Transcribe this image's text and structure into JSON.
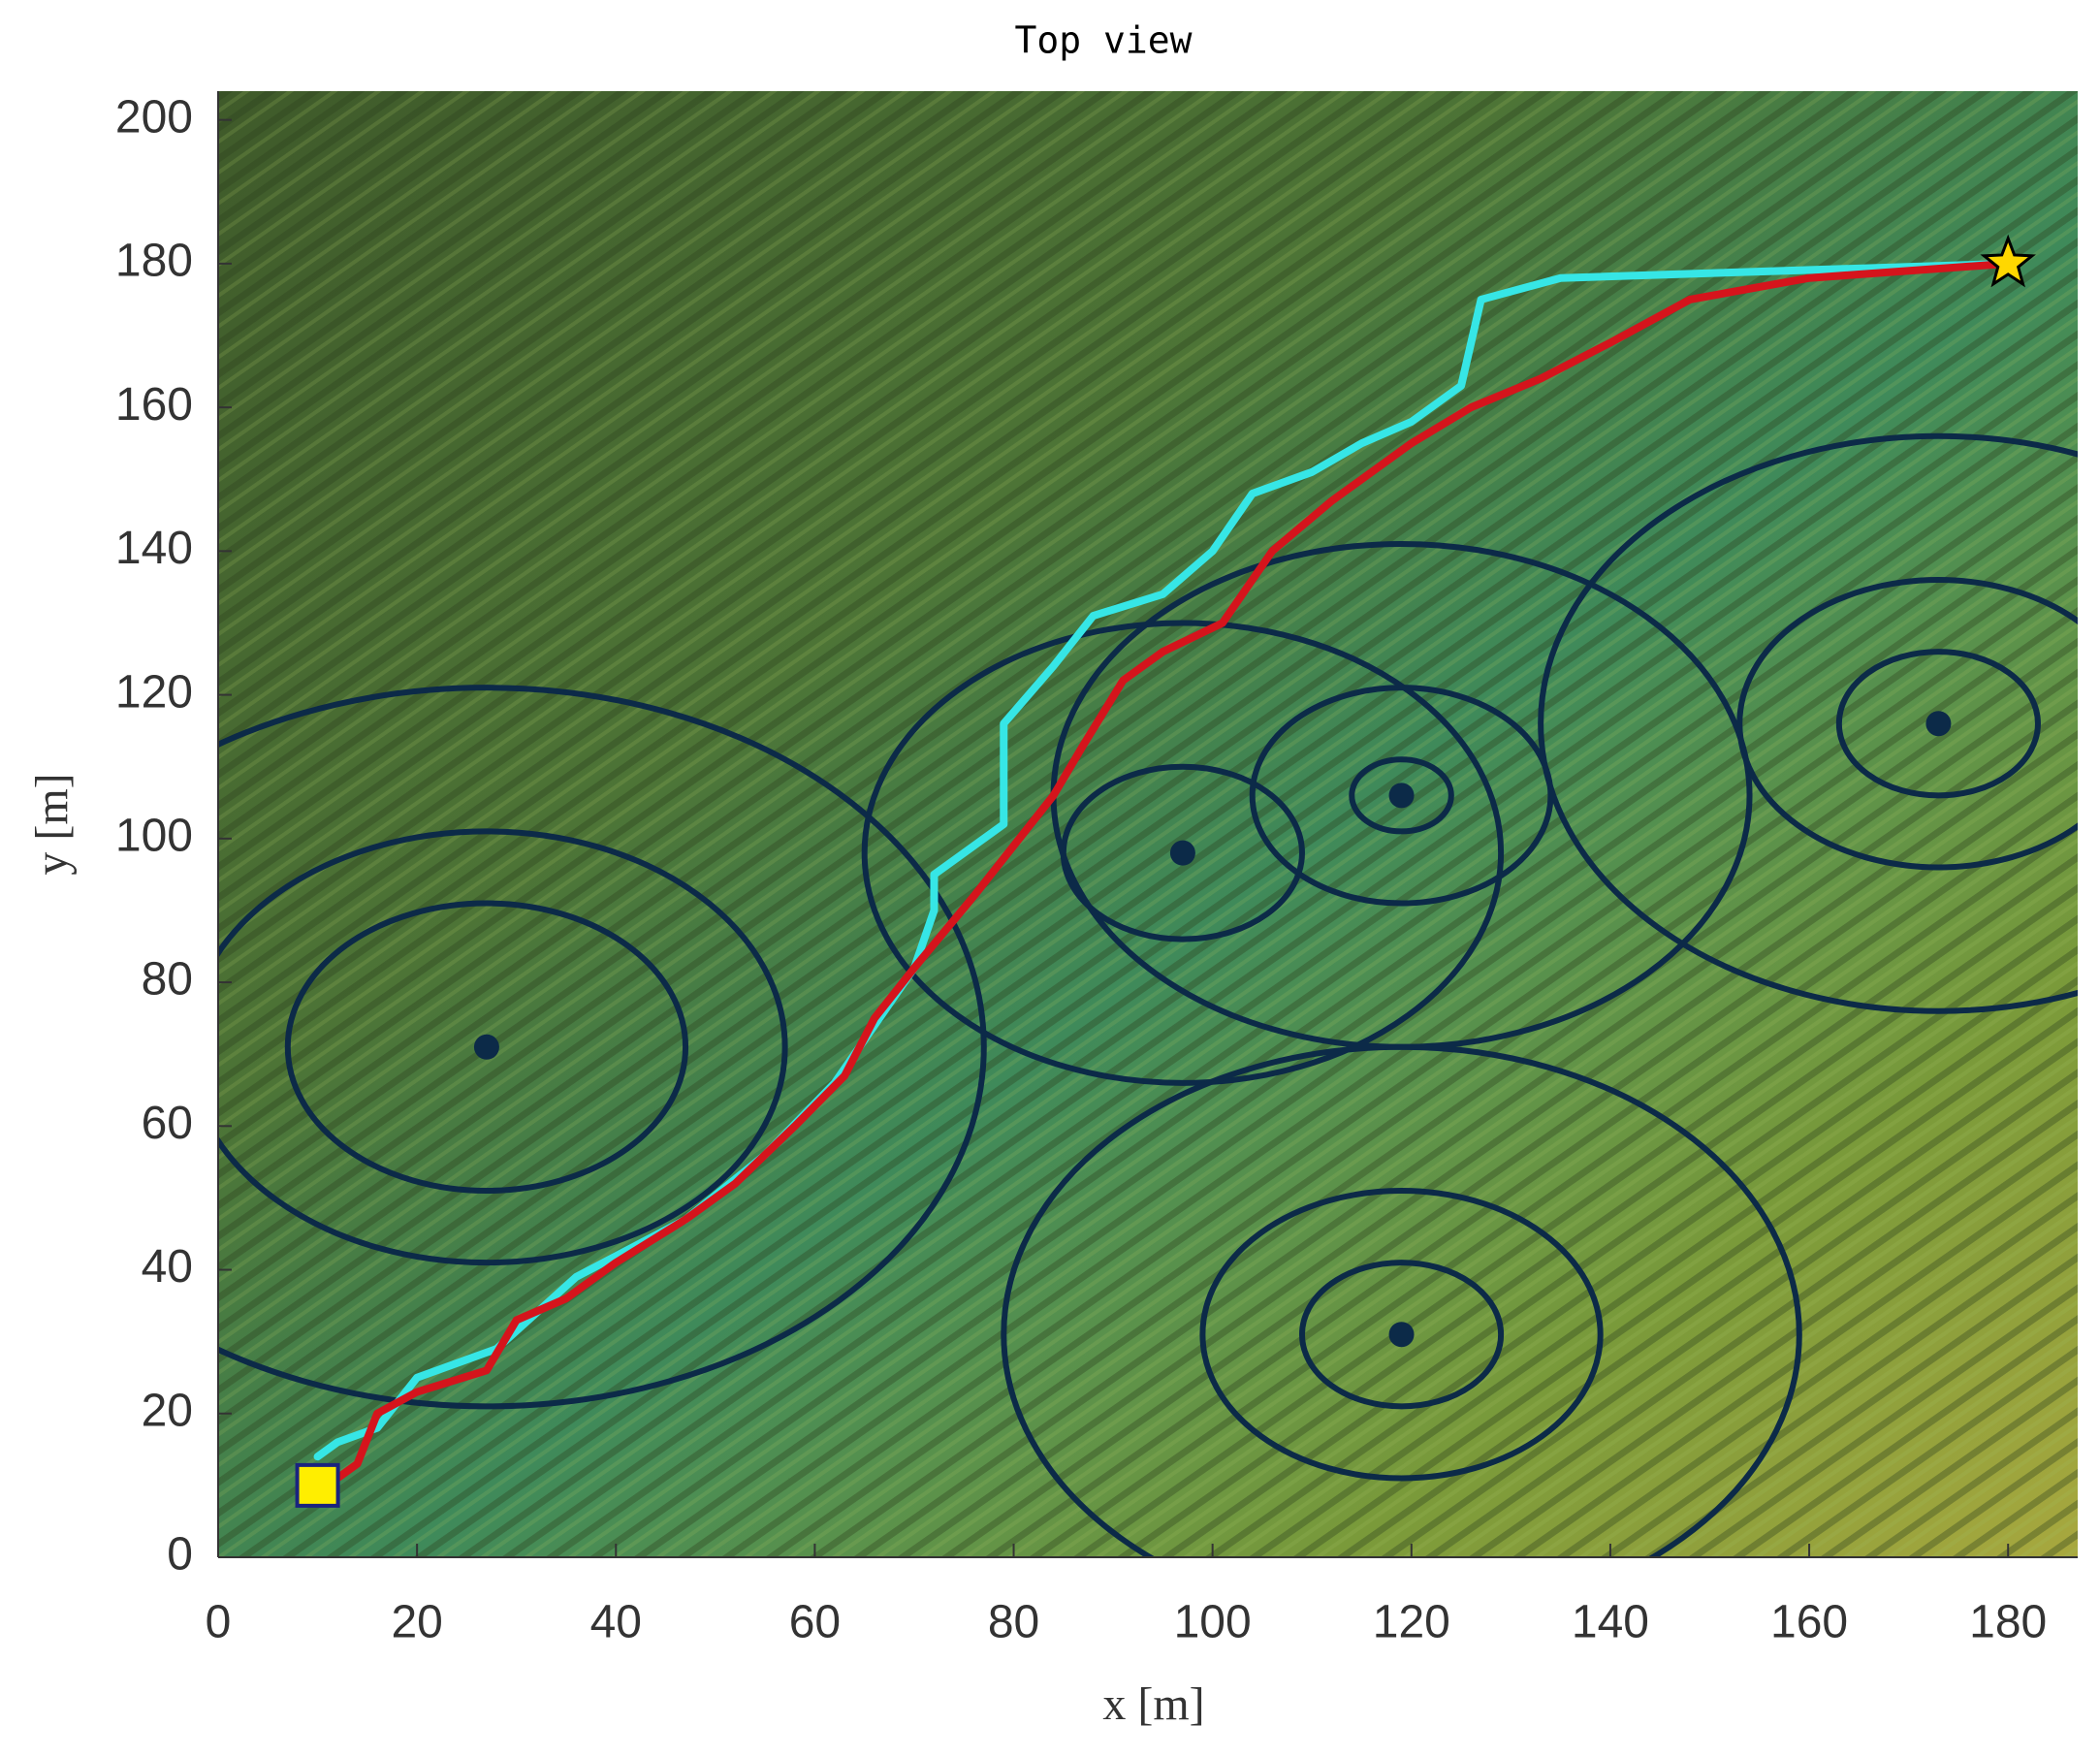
{
  "chart_data": {
    "type": "line",
    "title": "Top view",
    "x_label": "x [m]",
    "y_label": "y [m]",
    "xlim": [
      0,
      187
    ],
    "ylim": [
      0,
      204
    ],
    "xticks": [
      0,
      20,
      40,
      60,
      80,
      100,
      120,
      140,
      160,
      180
    ],
    "yticks": [
      0,
      20,
      40,
      60,
      80,
      100,
      120,
      140,
      160,
      180,
      200
    ],
    "series": [
      {
        "color": "#36e6e6",
        "x": [
          10,
          12,
          16,
          20,
          28,
          36,
          47,
          55,
          62,
          66,
          70,
          72,
          72,
          79,
          79,
          84,
          88,
          95,
          100,
          104,
          110,
          115,
          120,
          125,
          127,
          135,
          180
        ],
        "y": [
          14,
          16,
          18,
          25,
          29,
          39,
          47,
          56,
          66,
          74,
          82,
          90,
          95,
          102,
          116,
          124,
          131,
          134,
          140,
          148,
          151,
          155,
          158,
          163,
          175,
          178,
          180
        ]
      },
      {
        "color": "#d5141c",
        "x": [
          11,
          14,
          16,
          20,
          27,
          30,
          35,
          40,
          47,
          52,
          58,
          63,
          66,
          70,
          76,
          80,
          84,
          87,
          91,
          95,
          101,
          106,
          112,
          120,
          126,
          133,
          140,
          148,
          160,
          180
        ],
        "y": [
          10,
          13,
          20,
          23,
          26,
          33,
          36,
          41,
          47,
          52,
          60,
          67,
          75,
          82,
          92,
          99,
          106,
          113,
          122,
          126,
          130,
          140,
          147,
          155,
          160,
          164,
          169,
          175,
          178,
          180
        ]
      }
    ],
    "threat_color": "#0c2a48",
    "threats": [
      {
        "center": [
          27,
          71
        ],
        "radii": [
          20,
          30,
          50
        ]
      },
      {
        "center": [
          97,
          98
        ],
        "radii": [
          12,
          32
        ]
      },
      {
        "center": [
          119,
          106
        ],
        "radii": [
          5,
          15,
          35
        ]
      },
      {
        "center": [
          173,
          116
        ],
        "radii": [
          10,
          20,
          40
        ]
      },
      {
        "center": [
          119,
          31
        ],
        "radii": [
          10,
          20,
          40
        ]
      }
    ],
    "start": {
      "x": 10,
      "y": 10,
      "color": "#ffee00"
    },
    "goal": {
      "x": 180,
      "y": 180,
      "color": "#ffd700"
    }
  }
}
